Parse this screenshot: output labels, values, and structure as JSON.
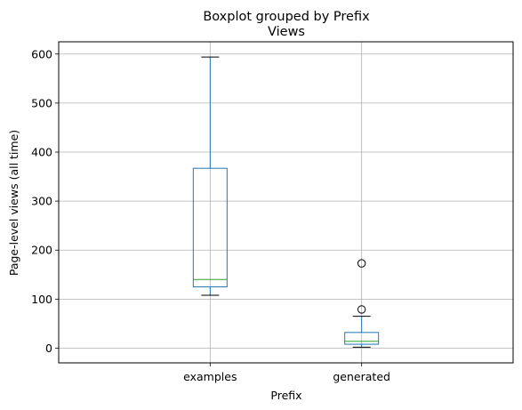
{
  "chart_data": {
    "type": "boxplot",
    "suptitle": "Boxplot grouped by Prefix",
    "title": "Views",
    "xlabel": "Prefix",
    "ylabel": "Page-level views (all time)",
    "ylim": [
      -30,
      625
    ],
    "yticks": [
      0,
      100,
      200,
      300,
      400,
      500,
      600
    ],
    "grid": true,
    "categories": [
      "examples",
      "generated"
    ],
    "boxes": [
      {
        "category": "examples",
        "whisker_low": 108,
        "q1": 125,
        "median": 140,
        "q3": 367,
        "whisker_high": 594,
        "outliers": []
      },
      {
        "category": "generated",
        "whisker_low": 2,
        "q1": 8,
        "median": 14,
        "q3": 32,
        "whisker_high": 65,
        "outliers": [
          79,
          173
        ]
      }
    ],
    "colors": {
      "box": "#1f77b4",
      "median": "#2ca02c",
      "grid": "#b0b0b0",
      "whisker": "#000000",
      "axes": "#000000"
    }
  }
}
